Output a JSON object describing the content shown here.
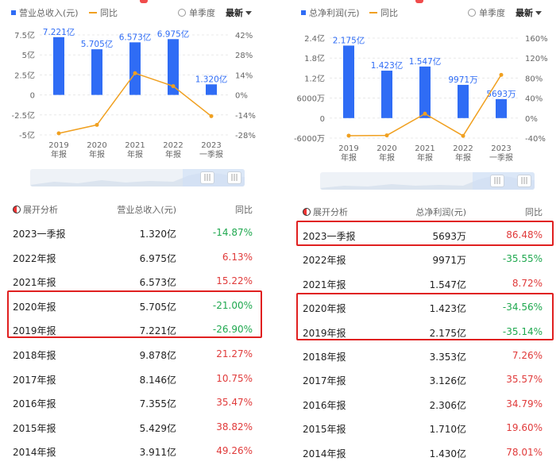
{
  "colors": {
    "bar": "#2f6cf5",
    "line": "#f0a020",
    "up": "#e03a3a",
    "down": "#1fa84f",
    "highlight": "#e02020"
  },
  "panels": [
    {
      "id": "left",
      "legend": {
        "series_bar": "营业总收入(元)",
        "series_line": "同比",
        "single_quarter": "单季度",
        "latest": "最新"
      },
      "chart": {
        "y_ticks_left": [
          "7.5亿",
          "5亿",
          "2.5亿",
          "0",
          "-2.5亿",
          "-5亿"
        ],
        "y_ticks_right": [
          "42%",
          "28%",
          "14%",
          "0%",
          "-14%",
          "-28%"
        ],
        "categories": [
          [
            "2019",
            "年报"
          ],
          [
            "2020",
            "年报"
          ],
          [
            "2021",
            "年报"
          ],
          [
            "2022",
            "年报"
          ],
          [
            "2023",
            "一季报"
          ]
        ],
        "bar_labels": [
          "7.221亿",
          "5.705亿",
          "6.573亿",
          "6.975亿",
          "1.320亿"
        ]
      },
      "chart_data": {
        "type": "bar",
        "categories": [
          "2019年报",
          "2020年报",
          "2021年报",
          "2022年报",
          "2023一季报"
        ],
        "series": [
          {
            "name": "营业总收入(元)",
            "type": "bar",
            "values": [
              7.221,
              5.705,
              6.573,
              6.975,
              1.32
            ]
          },
          {
            "name": "同比",
            "type": "line",
            "values": [
              -26.9,
              -21.0,
              15.22,
              6.13,
              -14.87
            ]
          }
        ],
        "ylim": [
          -5,
          7.5
        ],
        "y2lim": [
          -28,
          42
        ]
      },
      "table": {
        "header": {
          "analyze": "展开分析",
          "metric": "营业总收入(元)",
          "yoy": "同比"
        },
        "rows": [
          {
            "period": "2023一季报",
            "value": "1.320亿",
            "yoy": "-14.87%",
            "dir": "down"
          },
          {
            "period": "2022年报",
            "value": "6.975亿",
            "yoy": "6.13%",
            "dir": "up"
          },
          {
            "period": "2021年报",
            "value": "6.573亿",
            "yoy": "15.22%",
            "dir": "up"
          },
          {
            "period": "2020年报",
            "value": "5.705亿",
            "yoy": "-21.00%",
            "dir": "down"
          },
          {
            "period": "2019年报",
            "value": "7.221亿",
            "yoy": "-26.90%",
            "dir": "down"
          },
          {
            "period": "2018年报",
            "value": "9.878亿",
            "yoy": "21.27%",
            "dir": "up"
          },
          {
            "period": "2017年报",
            "value": "8.146亿",
            "yoy": "10.75%",
            "dir": "up"
          },
          {
            "period": "2016年报",
            "value": "7.355亿",
            "yoy": "35.47%",
            "dir": "up"
          },
          {
            "period": "2015年报",
            "value": "5.429亿",
            "yoy": "38.82%",
            "dir": "up"
          },
          {
            "period": "2014年报",
            "value": "3.911亿",
            "yoy": "49.26%",
            "dir": "up"
          }
        ]
      }
    },
    {
      "id": "right",
      "legend": {
        "series_bar": "总净利润(元)",
        "series_line": "同比",
        "single_quarter": "单季度",
        "latest": "最新"
      },
      "chart": {
        "y_ticks_left": [
          "2.4亿",
          "1.8亿",
          "1.2亿",
          "6000万",
          "0",
          "-6000万"
        ],
        "y_ticks_right": [
          "160%",
          "120%",
          "80%",
          "40%",
          "0%",
          "-40%"
        ],
        "categories": [
          [
            "2019",
            "年报"
          ],
          [
            "2020",
            "年报"
          ],
          [
            "2021",
            "年报"
          ],
          [
            "2022",
            "年报"
          ],
          [
            "2023",
            "一季报"
          ]
        ],
        "bar_labels": [
          "2.175亿",
          "1.423亿",
          "1.547亿",
          "9971万",
          "5693万"
        ]
      },
      "chart_data": {
        "type": "bar",
        "categories": [
          "2019年报",
          "2020年报",
          "2021年报",
          "2022年报",
          "2023一季报"
        ],
        "series": [
          {
            "name": "总净利润(元)",
            "type": "bar",
            "values": [
              2.175,
              1.423,
              1.547,
              0.9971,
              0.5693
            ]
          },
          {
            "name": "同比",
            "type": "line",
            "values": [
              -35.14,
              -34.56,
              8.72,
              -35.55,
              86.48
            ]
          }
        ],
        "ylim": [
          -0.6,
          2.4
        ],
        "y2lim": [
          -40,
          160
        ]
      },
      "table": {
        "header": {
          "analyze": "展开分析",
          "metric": "总净利润(元)",
          "yoy": "同比"
        },
        "rows": [
          {
            "period": "2023一季报",
            "value": "5693万",
            "yoy": "86.48%",
            "dir": "up"
          },
          {
            "period": "2022年报",
            "value": "9971万",
            "yoy": "-35.55%",
            "dir": "down"
          },
          {
            "period": "2021年报",
            "value": "1.547亿",
            "yoy": "8.72%",
            "dir": "up"
          },
          {
            "period": "2020年报",
            "value": "1.423亿",
            "yoy": "-34.56%",
            "dir": "down"
          },
          {
            "period": "2019年报",
            "value": "2.175亿",
            "yoy": "-35.14%",
            "dir": "down"
          },
          {
            "period": "2018年报",
            "value": "3.353亿",
            "yoy": "7.26%",
            "dir": "up"
          },
          {
            "period": "2017年报",
            "value": "3.126亿",
            "yoy": "35.57%",
            "dir": "up"
          },
          {
            "period": "2016年报",
            "value": "2.306亿",
            "yoy": "34.79%",
            "dir": "up"
          },
          {
            "period": "2015年报",
            "value": "1.710亿",
            "yoy": "19.60%",
            "dir": "up"
          },
          {
            "period": "2014年报",
            "value": "1.430亿",
            "yoy": "78.01%",
            "dir": "up"
          }
        ]
      }
    }
  ]
}
